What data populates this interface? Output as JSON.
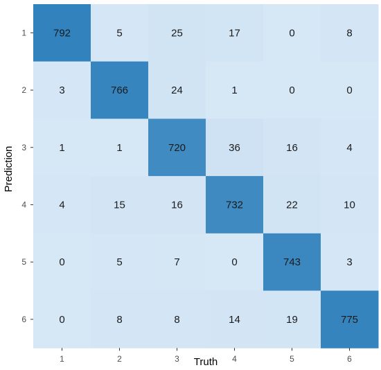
{
  "chart_data": {
    "type": "heatmap",
    "title": "",
    "xlabel": "Truth",
    "ylabel": "Prediction",
    "x_categories": [
      "1",
      "2",
      "3",
      "4",
      "5",
      "6"
    ],
    "y_categories": [
      "1",
      "2",
      "3",
      "4",
      "5",
      "6"
    ],
    "rows": [
      {
        "prediction": "1",
        "values": [
          792,
          5,
          25,
          17,
          0,
          8
        ]
      },
      {
        "prediction": "2",
        "values": [
          3,
          766,
          24,
          1,
          0,
          0
        ]
      },
      {
        "prediction": "3",
        "values": [
          1,
          1,
          720,
          36,
          16,
          4
        ]
      },
      {
        "prediction": "4",
        "values": [
          4,
          15,
          16,
          732,
          22,
          10
        ]
      },
      {
        "prediction": "5",
        "values": [
          0,
          5,
          7,
          0,
          743,
          3
        ]
      },
      {
        "prediction": "6",
        "values": [
          0,
          8,
          8,
          14,
          19,
          775
        ]
      }
    ],
    "color_low": "#d6e7f6",
    "color_high": "#3182bd",
    "legend": "none",
    "grid": false
  }
}
